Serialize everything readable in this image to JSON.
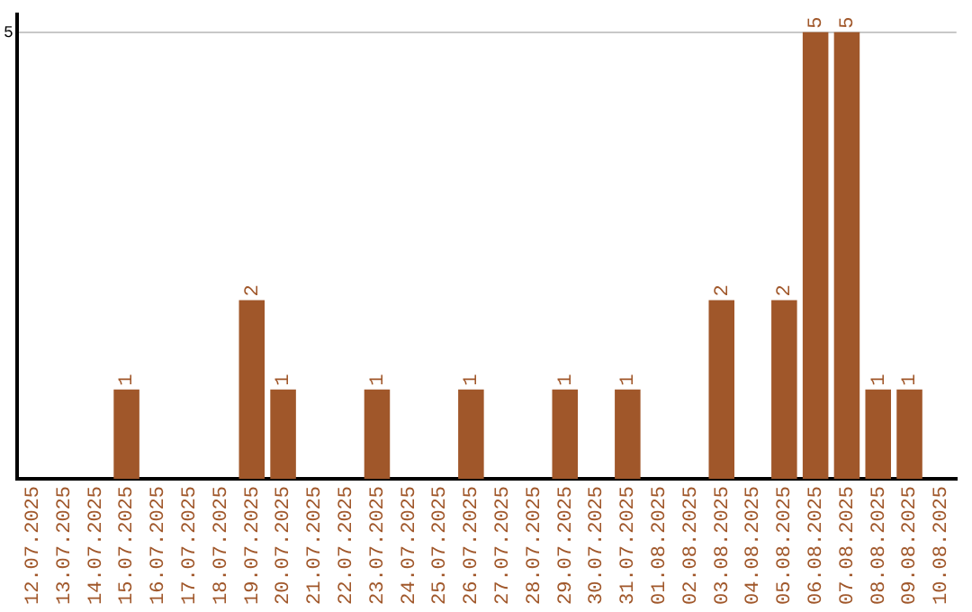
{
  "chart_data": {
    "type": "bar",
    "categories": [
      "12.07.2025",
      "13.07.2025",
      "14.07.2025",
      "15.07.2025",
      "16.07.2025",
      "17.07.2025",
      "18.07.2025",
      "19.07.2025",
      "20.07.2025",
      "21.07.2025",
      "22.07.2025",
      "23.07.2025",
      "24.07.2025",
      "25.07.2025",
      "26.07.2025",
      "27.07.2025",
      "28.07.2025",
      "29.07.2025",
      "30.07.2025",
      "31.07.2025",
      "01.08.2025",
      "02.08.2025",
      "03.08.2025",
      "04.08.2025",
      "05.08.2025",
      "06.08.2025",
      "07.08.2025",
      "08.08.2025",
      "09.08.2025",
      "10.08.2025"
    ],
    "values": [
      0,
      0,
      0,
      1,
      0,
      0,
      0,
      2,
      1,
      0,
      0,
      1,
      0,
      0,
      1,
      0,
      0,
      1,
      0,
      1,
      0,
      0,
      2,
      0,
      2,
      5,
      5,
      1,
      1,
      0
    ],
    "value_labels": [
      null,
      null,
      null,
      "1",
      null,
      null,
      null,
      "2",
      "1",
      null,
      null,
      "1",
      null,
      null,
      "1",
      null,
      null,
      "1",
      null,
      "1",
      null,
      null,
      "2",
      null,
      "2",
      "5",
      "5",
      "1",
      "1",
      null
    ],
    "color": "#a0572a",
    "ylim": [
      0,
      5.2
    ],
    "yticks": [
      5
    ],
    "grid": "y",
    "legend": false
  }
}
